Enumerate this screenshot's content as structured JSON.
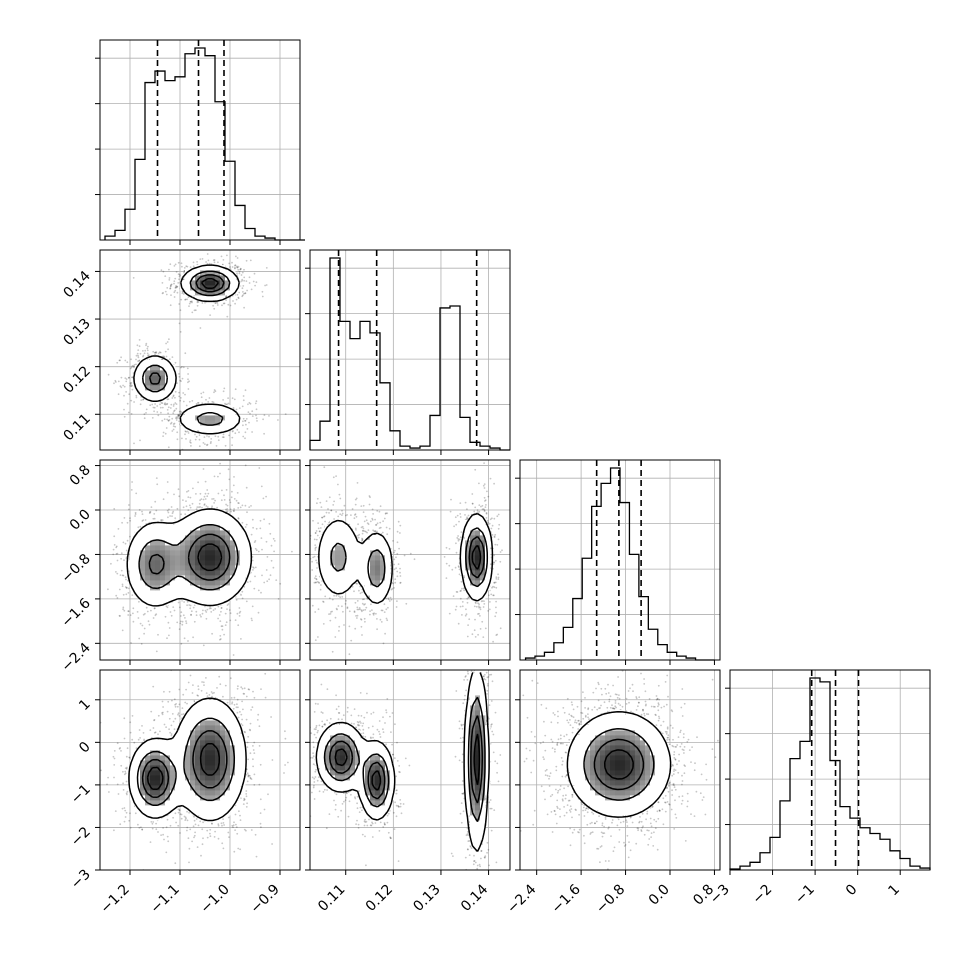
{
  "chart_data": {
    "type": "corner",
    "title": "",
    "grid": true,
    "parameters": [
      {
        "range": [
          -1.26,
          -0.86
        ],
        "ticks": [
          -1.2,
          -1.1,
          -1.0,
          -0.9
        ],
        "tick_labels": [
          "−1.2",
          "−1.1",
          "−1.0",
          "−0.9"
        ],
        "quantiles": [
          -1.145,
          -1.063,
          -1.012
        ]
      },
      {
        "range": [
          0.1025,
          0.1445
        ],
        "ticks": [
          0.11,
          0.12,
          0.13,
          0.14
        ],
        "tick_labels": [
          "0.11",
          "0.12",
          "0.13",
          "0.14"
        ],
        "quantiles": [
          0.1085,
          0.1165,
          0.1375
        ]
      },
      {
        "range": [
          -2.7,
          0.9
        ],
        "ticks": [
          -2.4,
          -1.6,
          -0.8,
          0.0,
          0.8
        ],
        "tick_labels": [
          "−2.4",
          "−1.6",
          "−0.8",
          "0.0",
          "0.8"
        ],
        "quantiles": [
          -1.32,
          -0.92,
          -0.52
        ]
      },
      {
        "range": [
          -3.0,
          1.7
        ],
        "ticks": [
          -3,
          -2,
          -1,
          0,
          1
        ],
        "tick_labels": [
          "−3",
          "−2",
          "−1",
          "0",
          "1"
        ],
        "quantiles": [
          -1.08,
          -0.52,
          0.02
        ]
      }
    ],
    "histograms": [
      {
        "edges_start": -1.25,
        "bin_width": 0.02,
        "values": [
          0.02,
          0.05,
          0.16,
          0.42,
          0.82,
          0.88,
          0.83,
          0.85,
          0.97,
          1.0,
          0.96,
          0.72,
          0.41,
          0.18,
          0.06,
          0.02,
          0.01,
          0,
          0,
          0
        ]
      },
      {
        "edges_start": 0.1025,
        "bin_width": 0.0021,
        "values": [
          0.05,
          0.15,
          1.0,
          0.67,
          0.58,
          0.67,
          0.61,
          0.35,
          0.1,
          0.02,
          0.01,
          0.02,
          0.18,
          0.74,
          0.75,
          0.17,
          0.04,
          0.02,
          0.01,
          0
        ]
      },
      {
        "edges_start": -2.6,
        "bin_width": 0.17,
        "values": [
          0.01,
          0.02,
          0.04,
          0.09,
          0.17,
          0.32,
          0.53,
          0.8,
          0.92,
          1.0,
          0.82,
          0.55,
          0.33,
          0.16,
          0.08,
          0.04,
          0.02,
          0.01,
          0,
          0
        ]
      },
      {
        "edges_start": -3.0,
        "bin_width": 0.235,
        "values": [
          0.005,
          0.02,
          0.04,
          0.09,
          0.17,
          0.36,
          0.58,
          0.67,
          1.0,
          0.98,
          0.57,
          0.33,
          0.27,
          0.22,
          0.19,
          0.16,
          0.1,
          0.06,
          0.02,
          0.01
        ]
      }
    ],
    "density_blobs": [
      {
        "row": 1,
        "col": 0,
        "components": [
          {
            "mean": [
              -1.04,
              0.1375
            ],
            "sd": [
              0.028,
              0.0018
            ],
            "w": 0.42
          },
          {
            "mean": [
              -1.15,
              0.1175
            ],
            "sd": [
              0.022,
              0.0025
            ],
            "w": 0.32
          },
          {
            "mean": [
              -1.04,
              0.109
            ],
            "sd": [
              0.035,
              0.0018
            ],
            "w": 0.26
          }
        ]
      },
      {
        "row": 2,
        "col": 0,
        "components": [
          {
            "mean": [
              -1.15,
              -0.98
            ],
            "sd": [
              0.03,
              0.4
            ],
            "w": 0.32
          },
          {
            "mean": [
              -1.04,
              -0.85
            ],
            "sd": [
              0.04,
              0.42
            ],
            "w": 0.68
          }
        ]
      },
      {
        "row": 2,
        "col": 1,
        "components": [
          {
            "mean": [
              0.1085,
              -0.85
            ],
            "sd": [
              0.0025,
              0.4
            ],
            "w": 0.32
          },
          {
            "mean": [
              0.1165,
              -1.05
            ],
            "sd": [
              0.0018,
              0.35
            ],
            "w": 0.26
          },
          {
            "mean": [
              0.1375,
              -0.85
            ],
            "sd": [
              0.0016,
              0.38
            ],
            "w": 0.42
          }
        ]
      },
      {
        "row": 3,
        "col": 0,
        "components": [
          {
            "mean": [
              -1.15,
              -0.85
            ],
            "sd": [
              0.025,
              0.45
            ],
            "w": 0.32
          },
          {
            "mean": [
              -1.04,
              -0.4
            ],
            "sd": [
              0.035,
              0.7
            ],
            "w": 0.68
          }
        ]
      },
      {
        "row": 3,
        "col": 1,
        "components": [
          {
            "mean": [
              0.109,
              -0.35
            ],
            "sd": [
              0.0025,
              0.4
            ],
            "w": 0.32
          },
          {
            "mean": [
              0.1165,
              -0.9
            ],
            "sd": [
              0.0018,
              0.45
            ],
            "w": 0.26
          },
          {
            "mean": [
              0.1375,
              -0.4
            ],
            "sd": [
              0.0012,
              1.05
            ],
            "w": 0.42
          }
        ]
      },
      {
        "row": 3,
        "col": 2,
        "components": [
          {
            "mean": [
              -0.92,
              -0.52
            ],
            "sd": [
              0.45,
              0.6
            ],
            "w": 1.0
          }
        ]
      }
    ],
    "contour_levels": [
      0.12,
      0.38,
      0.62,
      0.85
    ]
  }
}
